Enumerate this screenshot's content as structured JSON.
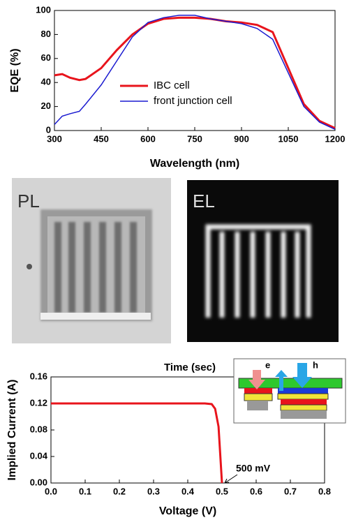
{
  "chart_data": [
    {
      "type": "line",
      "xlabel": "Wavelength (nm)",
      "ylabel": "EQE (%)",
      "x": [
        300,
        325,
        350,
        380,
        400,
        450,
        500,
        550,
        600,
        650,
        700,
        750,
        800,
        850,
        900,
        950,
        1000,
        1050,
        1100,
        1150,
        1200
      ],
      "series": [
        {
          "name": "IBC cell",
          "color": "#e8141c",
          "values": [
            46,
            47,
            44,
            42,
            43,
            52,
            67,
            80,
            89,
            93,
            94,
            94,
            93,
            91,
            90,
            88,
            82,
            52,
            22,
            8,
            2
          ]
        },
        {
          "name": "front junction cell",
          "color": "#1a1ad0",
          "values": [
            5,
            12,
            14,
            16,
            22,
            38,
            58,
            78,
            90,
            94,
            96,
            96,
            93,
            91,
            89,
            85,
            76,
            48,
            20,
            7,
            1
          ]
        }
      ],
      "xlim": [
        300,
        1200
      ],
      "xticks": [
        300,
        450,
        600,
        750,
        900,
        1050,
        1200
      ],
      "ylim": [
        0,
        100
      ],
      "yticks": [
        0,
        20,
        40,
        60,
        80,
        100
      ],
      "grid": false
    },
    {
      "type": "line",
      "xlabel": "Voltage (V)",
      "ylabel": "Implied Current (A)",
      "top_label": "Time (sec)",
      "annotation": "500 mV",
      "x": [
        0,
        0.1,
        0.2,
        0.3,
        0.4,
        0.45,
        0.47,
        0.48,
        0.49,
        0.5
      ],
      "values": [
        0.12,
        0.12,
        0.12,
        0.12,
        0.12,
        0.12,
        0.119,
        0.112,
        0.085,
        0
      ],
      "color": "#e8141c",
      "xlim": [
        0,
        0.8
      ],
      "xticks": [
        {
          "value": 0,
          "label": "0.0"
        },
        0.1,
        0.2,
        0.3,
        0.4,
        0.5,
        0.6,
        0.7,
        0.8
      ],
      "ylim": [
        0,
        0.16
      ],
      "yticks": [
        {
          "value": 0,
          "label": "0.00"
        },
        0.04,
        0.08,
        0.12,
        0.16
      ],
      "inset_labels": [
        "e",
        "h"
      ]
    }
  ],
  "images": [
    {
      "label": "PL"
    },
    {
      "label": "EL"
    }
  ]
}
